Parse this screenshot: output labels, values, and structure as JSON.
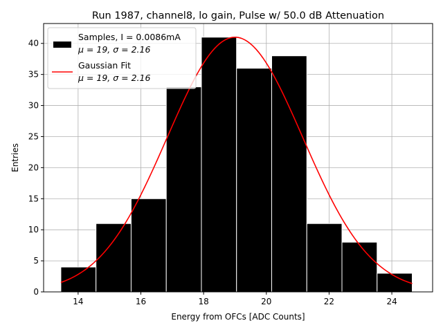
{
  "chart_data": {
    "type": "bar",
    "title": "Run 1987, channel8, lo gain, Pulse w/ 50.0 dB Attenuation",
    "xlabel": "Energy from OFCs [ADC Counts]",
    "ylabel": "Entries",
    "xlim": [
      12.9,
      25.3
    ],
    "ylim": [
      0,
      43.2
    ],
    "xticks": [
      14,
      16,
      18,
      20,
      22,
      24
    ],
    "yticks": [
      0,
      5,
      10,
      15,
      20,
      25,
      30,
      35,
      40
    ],
    "grid": true,
    "histogram": {
      "bin_edges": [
        13.45,
        14.57,
        15.69,
        16.81,
        17.93,
        19.05,
        20.17,
        21.29,
        22.41,
        23.53,
        24.65
      ],
      "values": [
        4,
        11,
        15,
        33,
        41,
        36,
        38,
        11,
        8,
        3
      ],
      "color": "#000000",
      "edgecolor": "#ffffff"
    },
    "fit": {
      "mu": 19,
      "sigma": 2.16,
      "amplitude": 41,
      "x_range": [
        13.45,
        24.65
      ],
      "color": "#ff0000"
    },
    "legend": {
      "placement": "top-left",
      "entries": [
        {
          "line1": "Samples, I = 0.0086mA",
          "line2": "μ = 19, σ = 2.16"
        },
        {
          "line1": "Gaussian Fit",
          "line2": "μ = 19, σ = 2.16"
        }
      ]
    }
  }
}
